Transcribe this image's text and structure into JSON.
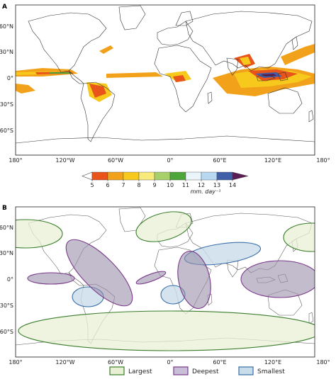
{
  "panel_a": {
    "label": "A",
    "lat_ticks": [
      "60°N",
      "30°N",
      "0°",
      "30°S",
      "60°S"
    ],
    "lon_ticks": [
      "180°",
      "120°W",
      "60°W",
      "0°",
      "60°E",
      "120°E",
      "180°"
    ],
    "colorbar": {
      "ticks": [
        "5",
        "6",
        "7",
        "8",
        "9",
        "10",
        "11",
        "12",
        "13",
        "14"
      ],
      "colors": [
        "#e8541a",
        "#f2a21a",
        "#f7c91c",
        "#f8ea7a",
        "#a8d06a",
        "#4ea53a",
        "#e9f4fb",
        "#b7d8f0",
        "#3f5fa8",
        "#5a1e55"
      ],
      "unit": "mm. day⁻¹"
    }
  },
  "panel_b": {
    "label": "B",
    "lat_ticks": [
      "60°N",
      "30°N",
      "0°",
      "30°S",
      "60°S"
    ],
    "lon_ticks": [
      "180°",
      "120°W",
      "60°W",
      "0°",
      "60°E",
      "120°E",
      "180°"
    ],
    "legend": [
      {
        "label": "Largest",
        "fill": "#e8f0d4",
        "stroke": "#3a7d2c"
      },
      {
        "label": "Deepest",
        "fill": "#c9bed8",
        "stroke": "#7b3a8a"
      },
      {
        "label": "Smallest",
        "fill": "#c9dcea",
        "stroke": "#3a6fa8"
      }
    ]
  }
}
